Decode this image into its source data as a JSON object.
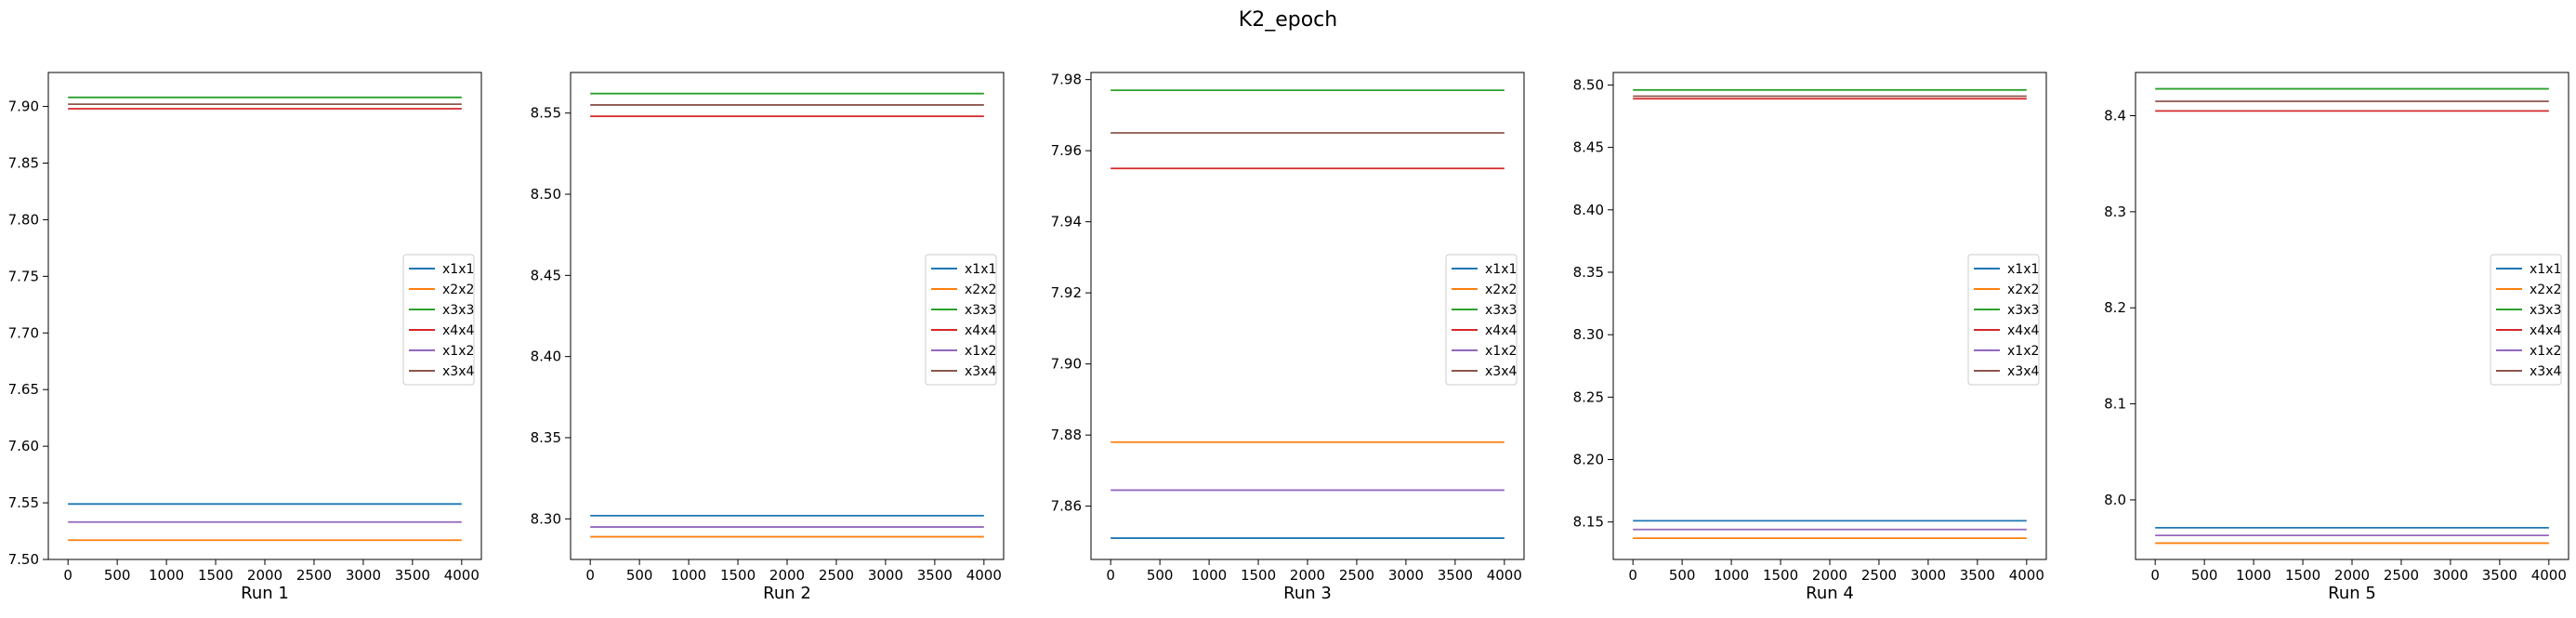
{
  "suptitle": "K2_epoch",
  "colors": {
    "x1x1": "#1f77b4",
    "x2x2": "#ff7f0e",
    "x3x3": "#2ca02c",
    "x4x4": "#d62728",
    "x1x2": "#9467bd",
    "x3x4": "#8c564b"
  },
  "chart_data": [
    {
      "type": "line",
      "xlabel": "Run 1",
      "x": [
        0,
        4000
      ],
      "xticks": [
        0,
        500,
        1000,
        1500,
        2000,
        2500,
        3000,
        3500,
        4000
      ],
      "xlim": [
        -200,
        4200
      ],
      "ylim": [
        7.5,
        7.93
      ],
      "yticks": [
        "7.50",
        "7.55",
        "7.60",
        "7.65",
        "7.70",
        "7.75",
        "7.80",
        "7.85",
        "7.90"
      ],
      "legend_loc": "center right",
      "series": [
        {
          "name": "x1x1",
          "values": [
            7.549,
            7.549
          ]
        },
        {
          "name": "x2x2",
          "values": [
            7.517,
            7.517
          ]
        },
        {
          "name": "x3x3",
          "values": [
            7.908,
            7.908
          ]
        },
        {
          "name": "x4x4",
          "values": [
            7.898,
            7.898
          ]
        },
        {
          "name": "x1x2",
          "values": [
            7.533,
            7.533
          ]
        },
        {
          "name": "x3x4",
          "values": [
            7.902,
            7.902
          ]
        }
      ]
    },
    {
      "type": "line",
      "xlabel": "Run 2",
      "x": [
        0,
        4000
      ],
      "xticks": [
        0,
        500,
        1000,
        1500,
        2000,
        2500,
        3000,
        3500,
        4000
      ],
      "xlim": [
        -200,
        4200
      ],
      "ylim": [
        8.275,
        8.575
      ],
      "yticks": [
        "8.30",
        "8.35",
        "8.40",
        "8.45",
        "8.50",
        "8.55"
      ],
      "legend_loc": "center right",
      "series": [
        {
          "name": "x1x1",
          "values": [
            8.302,
            8.302
          ]
        },
        {
          "name": "x2x2",
          "values": [
            8.289,
            8.289
          ]
        },
        {
          "name": "x3x3",
          "values": [
            8.562,
            8.562
          ]
        },
        {
          "name": "x4x4",
          "values": [
            8.548,
            8.548
          ]
        },
        {
          "name": "x1x2",
          "values": [
            8.295,
            8.295
          ]
        },
        {
          "name": "x3x4",
          "values": [
            8.555,
            8.555
          ]
        }
      ]
    },
    {
      "type": "line",
      "xlabel": "Run 3",
      "x": [
        0,
        4000
      ],
      "xticks": [
        0,
        500,
        1000,
        1500,
        2000,
        2500,
        3000,
        3500,
        4000
      ],
      "xlim": [
        -200,
        4200
      ],
      "ylim": [
        7.845,
        7.982
      ],
      "yticks": [
        "7.86",
        "7.88",
        "7.90",
        "7.92",
        "7.94",
        "7.96",
        "7.98"
      ],
      "legend_loc": "center right",
      "series": [
        {
          "name": "x1x1",
          "values": [
            7.851,
            7.851
          ]
        },
        {
          "name": "x2x2",
          "values": [
            7.878,
            7.878
          ]
        },
        {
          "name": "x3x3",
          "values": [
            7.977,
            7.977
          ]
        },
        {
          "name": "x4x4",
          "values": [
            7.955,
            7.955
          ]
        },
        {
          "name": "x1x2",
          "values": [
            7.8645,
            7.8645
          ]
        },
        {
          "name": "x3x4",
          "values": [
            7.965,
            7.965
          ]
        }
      ]
    },
    {
      "type": "line",
      "xlabel": "Run 4",
      "x": [
        0,
        4000
      ],
      "xticks": [
        0,
        500,
        1000,
        1500,
        2000,
        2500,
        3000,
        3500,
        4000
      ],
      "xlim": [
        -200,
        4200
      ],
      "ylim": [
        8.12,
        8.51
      ],
      "yticks": [
        "8.15",
        "8.20",
        "8.25",
        "8.30",
        "8.35",
        "8.40",
        "8.45",
        "8.50"
      ],
      "legend_loc": "center right",
      "series": [
        {
          "name": "x1x1",
          "values": [
            8.151,
            8.151
          ]
        },
        {
          "name": "x2x2",
          "values": [
            8.137,
            8.137
          ]
        },
        {
          "name": "x3x3",
          "values": [
            8.496,
            8.496
          ]
        },
        {
          "name": "x4x4",
          "values": [
            8.489,
            8.489
          ]
        },
        {
          "name": "x1x2",
          "values": [
            8.144,
            8.144
          ]
        },
        {
          "name": "x3x4",
          "values": [
            8.491,
            8.491
          ]
        }
      ]
    },
    {
      "type": "line",
      "xlabel": "Run 5",
      "x": [
        0,
        4000
      ],
      "xticks": [
        0,
        500,
        1000,
        1500,
        2000,
        2500,
        3000,
        3500,
        4000
      ],
      "xlim": [
        -200,
        4200
      ],
      "ylim": [
        7.938,
        8.445
      ],
      "yticks": [
        "8.0",
        "8.1",
        "8.2",
        "8.3",
        "8.4"
      ],
      "legend_loc": "center right",
      "series": [
        {
          "name": "x1x1",
          "values": [
            7.971,
            7.971
          ]
        },
        {
          "name": "x2x2",
          "values": [
            7.955,
            7.955
          ]
        },
        {
          "name": "x3x3",
          "values": [
            8.428,
            8.428
          ]
        },
        {
          "name": "x4x4",
          "values": [
            8.405,
            8.405
          ]
        },
        {
          "name": "x1x2",
          "values": [
            7.963,
            7.963
          ]
        },
        {
          "name": "x3x4",
          "values": [
            8.415,
            8.415
          ]
        }
      ]
    }
  ]
}
